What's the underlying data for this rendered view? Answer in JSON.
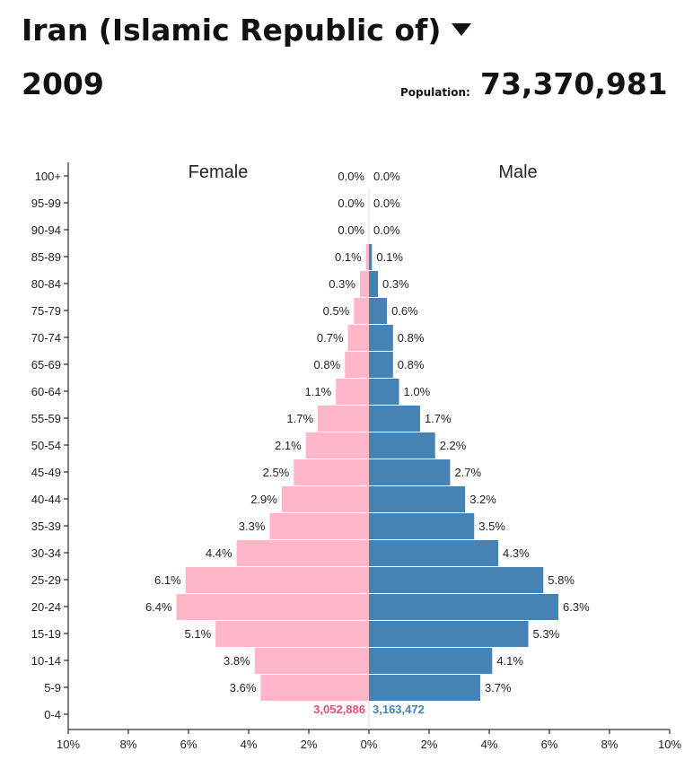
{
  "header": {
    "country": "Iran (Islamic Republic of)",
    "year": "2009",
    "population_label": "Population:",
    "population_value": "73,370,981"
  },
  "chart_data": {
    "type": "bar",
    "orientation": "horizontal",
    "subtype": "population-pyramid",
    "categories": [
      "100+",
      "95-99",
      "90-94",
      "85-89",
      "80-84",
      "75-79",
      "70-74",
      "65-69",
      "60-64",
      "55-59",
      "50-54",
      "45-49",
      "40-44",
      "35-39",
      "30-34",
      "25-29",
      "20-24",
      "15-19",
      "10-14",
      "5-9",
      "0-4"
    ],
    "series": [
      {
        "name": "Female",
        "color": "#ffb6c8",
        "values": [
          0.0,
          0.0,
          0.0,
          0.1,
          0.3,
          0.5,
          0.7,
          0.8,
          1.1,
          1.7,
          2.1,
          2.5,
          2.9,
          3.3,
          4.4,
          6.1,
          6.4,
          5.1,
          3.8,
          3.6,
          null
        ],
        "labels": [
          "0.0%",
          "0.0%",
          "0.0%",
          "0.1%",
          "0.3%",
          "0.5%",
          "0.7%",
          "0.8%",
          "1.1%",
          "1.7%",
          "2.1%",
          "2.5%",
          "2.9%",
          "3.3%",
          "4.4%",
          "6.1%",
          "6.4%",
          "5.1%",
          "3.8%",
          "3.6%",
          ""
        ],
        "bottom_count": "3,052,886",
        "count_color": "#e0507a"
      },
      {
        "name": "Male",
        "color": "#4682b4",
        "values": [
          0.0,
          0.0,
          0.0,
          0.1,
          0.3,
          0.6,
          0.8,
          0.8,
          1.0,
          1.7,
          2.2,
          2.7,
          3.2,
          3.5,
          4.3,
          5.8,
          6.3,
          5.3,
          4.1,
          3.7,
          null
        ],
        "labels": [
          "0.0%",
          "0.0%",
          "0.0%",
          "0.1%",
          "0.3%",
          "0.6%",
          "0.8%",
          "0.8%",
          "1.0%",
          "1.7%",
          "2.2%",
          "2.7%",
          "3.2%",
          "3.5%",
          "4.3%",
          "5.8%",
          "6.3%",
          "5.3%",
          "4.1%",
          "3.7%",
          ""
        ],
        "bottom_count": "3,163,472",
        "count_color": "#4682b4"
      }
    ],
    "xlim": [
      -10,
      10
    ],
    "xticks": [
      "10%",
      "8%",
      "6%",
      "4%",
      "2%",
      "0%",
      "2%",
      "4%",
      "6%",
      "8%",
      "10%"
    ],
    "grid": false
  }
}
